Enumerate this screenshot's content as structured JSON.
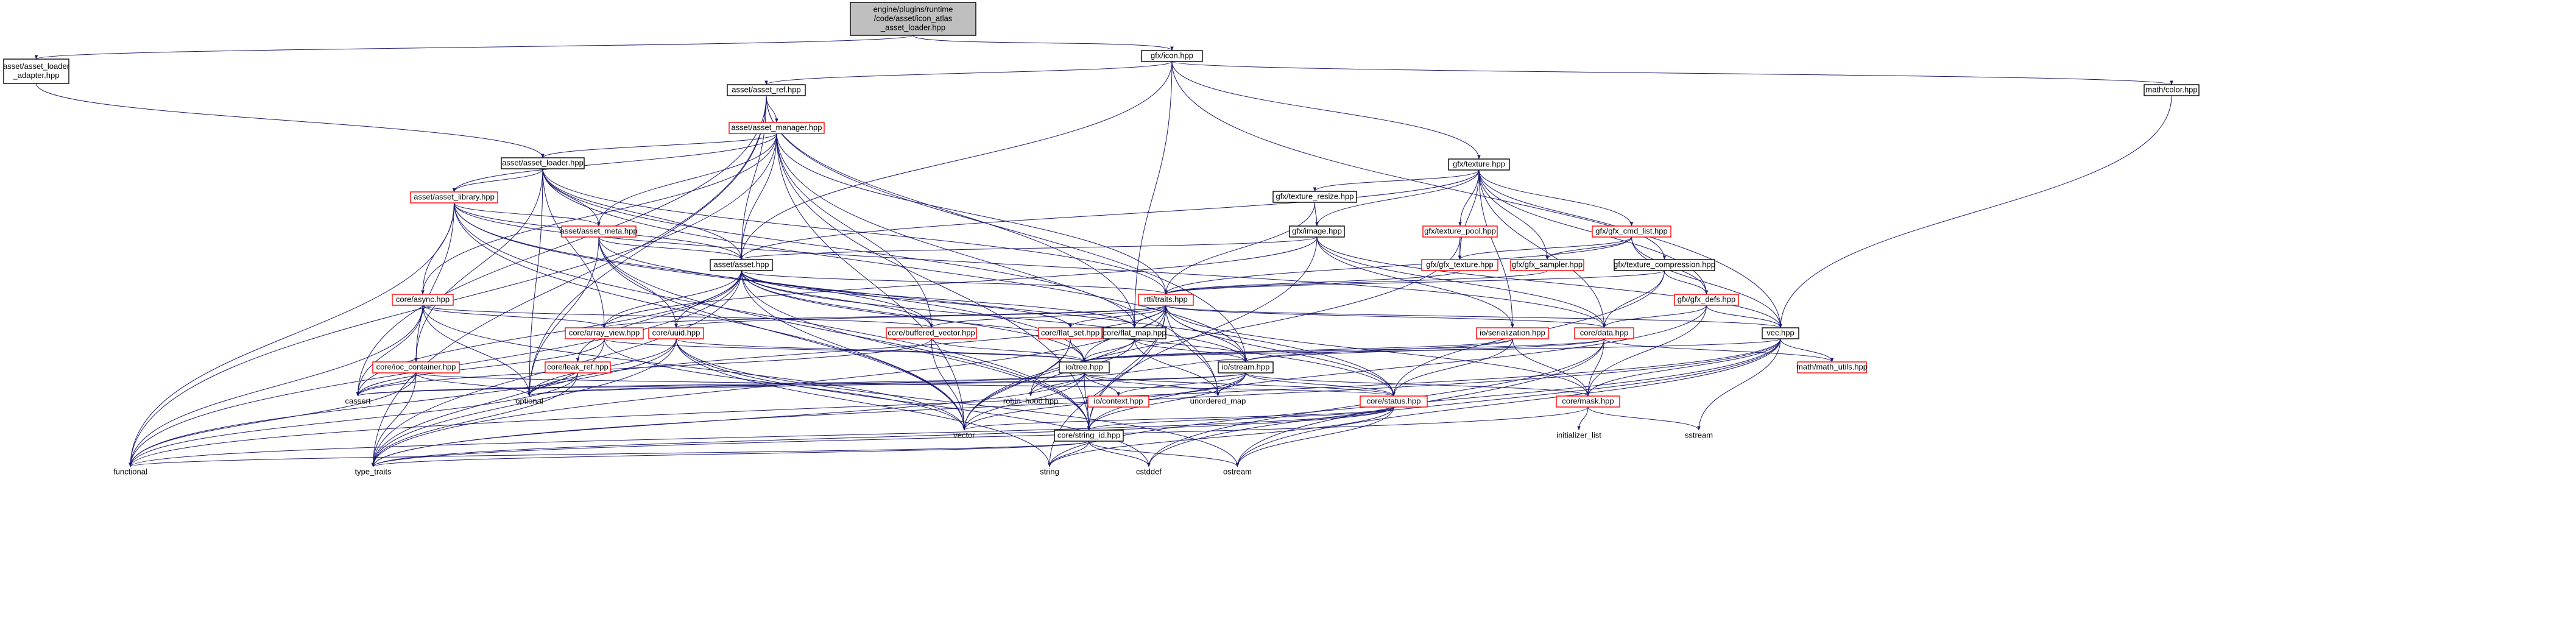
{
  "colors": {
    "edge": "#191970",
    "node_border_complete": "#000000",
    "node_border_incomplete": "#ff0000",
    "node_fill": "#ffffff",
    "root_fill": "#bfbfbf",
    "text": "#000000"
  },
  "nodes": [
    {
      "id": "root",
      "lines": [
        "engine/plugins/runtime",
        "/code/asset/icon_atlas",
        "_asset_loader.hpp"
      ],
      "style": "root"
    },
    {
      "id": "aal_adapter",
      "lines": [
        "asset/asset_loader",
        "_adapter.hpp"
      ],
      "style": "complete"
    },
    {
      "id": "gfx_icon",
      "lines": [
        "gfx/icon.hpp"
      ],
      "style": "complete"
    },
    {
      "id": "asset_ref",
      "lines": [
        "asset/asset_ref.hpp"
      ],
      "style": "complete"
    },
    {
      "id": "math_color",
      "lines": [
        "math/color.hpp"
      ],
      "style": "complete"
    },
    {
      "id": "asset_manager",
      "lines": [
        "asset/asset_manager.hpp"
      ],
      "style": "incomplete"
    },
    {
      "id": "asset_loader",
      "lines": [
        "asset/asset_loader.hpp"
      ],
      "style": "complete"
    },
    {
      "id": "gfx_texture",
      "lines": [
        "gfx/texture.hpp"
      ],
      "style": "complete"
    },
    {
      "id": "asset_library",
      "lines": [
        "asset/asset_library.hpp"
      ],
      "style": "incomplete"
    },
    {
      "id": "texture_resize",
      "lines": [
        "gfx/texture_resize.hpp"
      ],
      "style": "complete"
    },
    {
      "id": "asset_meta",
      "lines": [
        "asset/asset_meta.hpp"
      ],
      "style": "incomplete"
    },
    {
      "id": "gfx_image",
      "lines": [
        "gfx/image.hpp"
      ],
      "style": "complete"
    },
    {
      "id": "texture_pool",
      "lines": [
        "gfx/texture_pool.hpp"
      ],
      "style": "incomplete"
    },
    {
      "id": "gfx_cmd_list",
      "lines": [
        "gfx/gfx_cmd_list.hpp"
      ],
      "style": "incomplete"
    },
    {
      "id": "asset_asset",
      "lines": [
        "asset/asset.hpp"
      ],
      "style": "complete"
    },
    {
      "id": "gfx_gfx_texture",
      "lines": [
        "gfx/gfx_texture.hpp"
      ],
      "style": "incomplete"
    },
    {
      "id": "gfx_sampler",
      "lines": [
        "gfx/gfx_sampler.hpp"
      ],
      "style": "incomplete"
    },
    {
      "id": "texture_compression",
      "lines": [
        "gfx/texture_compression.hpp"
      ],
      "style": "complete"
    },
    {
      "id": "rtti_traits",
      "lines": [
        "rtti/traits.hpp"
      ],
      "style": "incomplete"
    },
    {
      "id": "core_async",
      "lines": [
        "core/async.hpp"
      ],
      "style": "incomplete"
    },
    {
      "id": "gfx_defs",
      "lines": [
        "gfx/gfx_defs.hpp"
      ],
      "style": "incomplete"
    },
    {
      "id": "array_view",
      "lines": [
        "core/array_view.hpp"
      ],
      "style": "incomplete"
    },
    {
      "id": "core_uuid",
      "lines": [
        "core/uuid.hpp"
      ],
      "style": "incomplete"
    },
    {
      "id": "buffered_vector",
      "lines": [
        "core/buffered_vector.hpp"
      ],
      "style": "incomplete"
    },
    {
      "id": "flat_set",
      "lines": [
        "core/flat_set.hpp"
      ],
      "style": "incomplete"
    },
    {
      "id": "flat_map",
      "lines": [
        "core/flat_map.hpp"
      ],
      "style": "complete"
    },
    {
      "id": "io_serialization",
      "lines": [
        "io/serialization.hpp"
      ],
      "style": "incomplete"
    },
    {
      "id": "core_data",
      "lines": [
        "core/data.hpp"
      ],
      "style": "incomplete"
    },
    {
      "id": "vec",
      "lines": [
        "vec.hpp"
      ],
      "style": "complete"
    },
    {
      "id": "leak_ref",
      "lines": [
        "core/leak_ref.hpp"
      ],
      "style": "incomplete"
    },
    {
      "id": "ioc_container",
      "lines": [
        "core/ioc_container.hpp"
      ],
      "style": "incomplete"
    },
    {
      "id": "io_tree",
      "lines": [
        "io/tree.hpp"
      ],
      "style": "complete"
    },
    {
      "id": "io_stream",
      "lines": [
        "io/stream.hpp"
      ],
      "style": "complete"
    },
    {
      "id": "math_utils",
      "lines": [
        "math/math_utils.hpp"
      ],
      "style": "incomplete"
    },
    {
      "id": "cassert",
      "lines": [
        "cassert"
      ],
      "style": "system"
    },
    {
      "id": "optional",
      "lines": [
        "optional"
      ],
      "style": "system"
    },
    {
      "id": "robin_hood",
      "lines": [
        "robin_hood.hpp"
      ],
      "style": "system"
    },
    {
      "id": "io_context",
      "lines": [
        "io/context.hpp"
      ],
      "style": "incomplete"
    },
    {
      "id": "unordered_map",
      "lines": [
        "unordered_map"
      ],
      "style": "system"
    },
    {
      "id": "core_status",
      "lines": [
        "core/status.hpp"
      ],
      "style": "incomplete"
    },
    {
      "id": "core_mask",
      "lines": [
        "core/mask.hpp"
      ],
      "style": "incomplete"
    },
    {
      "id": "vector",
      "lines": [
        "vector"
      ],
      "style": "system"
    },
    {
      "id": "string_id",
      "lines": [
        "core/string_id.hpp"
      ],
      "style": "complete"
    },
    {
      "id": "initializer_list",
      "lines": [
        "initializer_list"
      ],
      "style": "system"
    },
    {
      "id": "sstream",
      "lines": [
        "sstream"
      ],
      "style": "system"
    },
    {
      "id": "functional",
      "lines": [
        "functional"
      ],
      "style": "system"
    },
    {
      "id": "type_traits",
      "lines": [
        "type_traits"
      ],
      "style": "system"
    },
    {
      "id": "string",
      "lines": [
        "string"
      ],
      "style": "system"
    },
    {
      "id": "cstddef",
      "lines": [
        "cstddef"
      ],
      "style": "system"
    },
    {
      "id": "ostream",
      "lines": [
        "ostream"
      ],
      "style": "system"
    }
  ],
  "edges": [
    [
      "root",
      "aal_adapter"
    ],
    [
      "root",
      "gfx_icon"
    ],
    [
      "aal_adapter",
      "asset_loader"
    ],
    [
      "gfx_icon",
      "asset_ref"
    ],
    [
      "gfx_icon",
      "math_color"
    ],
    [
      "gfx_icon",
      "gfx_texture"
    ],
    [
      "gfx_icon",
      "asset_asset"
    ],
    [
      "gfx_icon",
      "vec"
    ],
    [
      "gfx_icon",
      "flat_map"
    ],
    [
      "asset_ref",
      "asset_manager"
    ],
    [
      "asset_ref",
      "asset_asset"
    ],
    [
      "asset_ref",
      "cassert"
    ],
    [
      "asset_ref",
      "optional"
    ],
    [
      "asset_ref",
      "type_traits"
    ],
    [
      "asset_ref",
      "io_stream"
    ],
    [
      "asset_ref",
      "flat_map"
    ],
    [
      "math_color",
      "vec"
    ],
    [
      "asset_manager",
      "asset_loader"
    ],
    [
      "asset_manager",
      "asset_library"
    ],
    [
      "asset_manager",
      "asset_meta"
    ],
    [
      "asset_manager",
      "asset_asset"
    ],
    [
      "asset_manager",
      "core_async"
    ],
    [
      "asset_manager",
      "buffered_vector"
    ],
    [
      "asset_manager",
      "rtti_traits"
    ],
    [
      "asset_manager",
      "functional"
    ],
    [
      "asset_manager",
      "vector"
    ],
    [
      "asset_manager",
      "unordered_map"
    ],
    [
      "asset_manager",
      "string_id"
    ],
    [
      "asset_loader",
      "asset_library"
    ],
    [
      "asset_loader",
      "asset_meta"
    ],
    [
      "asset_loader",
      "asset_asset"
    ],
    [
      "asset_loader",
      "array_view"
    ],
    [
      "asset_loader",
      "ioc_container"
    ],
    [
      "asset_loader",
      "rtti_traits"
    ],
    [
      "asset_loader",
      "io_stream"
    ],
    [
      "asset_loader",
      "optional"
    ],
    [
      "asset_loader",
      "flat_map"
    ],
    [
      "asset_library",
      "asset_meta"
    ],
    [
      "asset_library",
      "asset_asset"
    ],
    [
      "asset_library",
      "core_async"
    ],
    [
      "asset_library",
      "ioc_container"
    ],
    [
      "asset_library",
      "core_data"
    ],
    [
      "asset_library",
      "string_id"
    ],
    [
      "asset_library",
      "vector"
    ],
    [
      "asset_library",
      "io_tree"
    ],
    [
      "asset_library",
      "functional"
    ],
    [
      "asset_library",
      "core_status"
    ],
    [
      "gfx_texture",
      "texture_resize"
    ],
    [
      "gfx_texture",
      "gfx_image"
    ],
    [
      "gfx_texture",
      "texture_pool"
    ],
    [
      "gfx_texture",
      "gfx_cmd_list"
    ],
    [
      "gfx_texture",
      "gfx_gfx_texture"
    ],
    [
      "gfx_texture",
      "gfx_sampler"
    ],
    [
      "gfx_texture",
      "texture_compression"
    ],
    [
      "gfx_texture",
      "asset_asset"
    ],
    [
      "gfx_texture",
      "gfx_defs"
    ],
    [
      "gfx_texture",
      "io_serialization"
    ],
    [
      "gfx_texture",
      "core_data"
    ],
    [
      "texture_resize",
      "gfx_image"
    ],
    [
      "texture_resize",
      "rtti_traits"
    ],
    [
      "asset_meta",
      "asset_asset"
    ],
    [
      "asset_meta",
      "core_uuid"
    ],
    [
      "asset_meta",
      "buffered_vector"
    ],
    [
      "asset_meta",
      "optional"
    ],
    [
      "asset_meta",
      "vector"
    ],
    [
      "asset_meta",
      "string_id"
    ],
    [
      "gfx_image",
      "asset_asset"
    ],
    [
      "gfx_image",
      "array_view"
    ],
    [
      "gfx_image",
      "core_data"
    ],
    [
      "gfx_image",
      "vec"
    ],
    [
      "gfx_image",
      "io_serialization"
    ],
    [
      "gfx_image",
      "string_id"
    ],
    [
      "texture_pool",
      "gfx_gfx_texture"
    ],
    [
      "texture_pool",
      "vector"
    ],
    [
      "gfx_cmd_list",
      "gfx_gfx_texture"
    ],
    [
      "gfx_cmd_list",
      "gfx_sampler"
    ],
    [
      "gfx_cmd_list",
      "gfx_defs"
    ],
    [
      "gfx_cmd_list",
      "vec"
    ],
    [
      "gfx_cmd_list",
      "rtti_traits"
    ],
    [
      "gfx_gfx_texture",
      "rtti_traits"
    ],
    [
      "gfx_sampler",
      "rtti_traits"
    ],
    [
      "texture_compression",
      "gfx_defs"
    ],
    [
      "texture_compression",
      "rtti_traits"
    ],
    [
      "texture_compression",
      "core_data"
    ],
    [
      "texture_compression",
      "core_status"
    ],
    [
      "asset_asset",
      "rtti_traits"
    ],
    [
      "asset_asset",
      "array_view"
    ],
    [
      "asset_asset",
      "core_uuid"
    ],
    [
      "asset_asset",
      "buffered_vector"
    ],
    [
      "asset_asset",
      "flat_set"
    ],
    [
      "asset_asset",
      "flat_map"
    ],
    [
      "asset_asset",
      "leak_ref"
    ],
    [
      "asset_asset",
      "io_tree"
    ],
    [
      "asset_asset",
      "io_stream"
    ],
    [
      "asset_asset",
      "cassert"
    ],
    [
      "asset_asset",
      "vector"
    ],
    [
      "asset_asset",
      "string_id"
    ],
    [
      "asset_asset",
      "core_status"
    ],
    [
      "asset_asset",
      "type_traits"
    ],
    [
      "asset_asset",
      "functional"
    ],
    [
      "rtti_traits",
      "array_view"
    ],
    [
      "rtti_traits",
      "core_uuid"
    ],
    [
      "rtti_traits",
      "buffered_vector"
    ],
    [
      "rtti_traits",
      "flat_set"
    ],
    [
      "rtti_traits",
      "flat_map"
    ],
    [
      "rtti_traits",
      "core_data"
    ],
    [
      "rtti_traits",
      "vec"
    ],
    [
      "rtti_traits",
      "io_tree"
    ],
    [
      "rtti_traits",
      "io_stream"
    ],
    [
      "rtti_traits",
      "core_status"
    ],
    [
      "rtti_traits",
      "core_mask"
    ],
    [
      "rtti_traits",
      "string_id"
    ],
    [
      "rtti_traits",
      "type_traits"
    ],
    [
      "rtti_traits",
      "unordered_map"
    ],
    [
      "rtti_traits",
      "vector"
    ],
    [
      "rtti_traits",
      "optional"
    ],
    [
      "rtti_traits",
      "string"
    ],
    [
      "core_async",
      "array_view"
    ],
    [
      "core_async",
      "optional"
    ],
    [
      "core_async",
      "cassert"
    ],
    [
      "core_async",
      "functional"
    ],
    [
      "core_async",
      "vector"
    ],
    [
      "core_async",
      "buffered_vector"
    ],
    [
      "gfx_defs",
      "core_data"
    ],
    [
      "gfx_defs",
      "vec"
    ],
    [
      "gfx_defs",
      "core_mask"
    ],
    [
      "gfx_defs",
      "string_id"
    ],
    [
      "array_view",
      "io_tree"
    ],
    [
      "array_view",
      "cassert"
    ],
    [
      "array_view",
      "type_traits"
    ],
    [
      "array_view",
      "vector"
    ],
    [
      "core_uuid",
      "io_tree"
    ],
    [
      "core_uuid",
      "functional"
    ],
    [
      "core_uuid",
      "type_traits"
    ],
    [
      "core_uuid",
      "string"
    ],
    [
      "core_uuid",
      "cstddef"
    ],
    [
      "core_uuid",
      "ostream"
    ],
    [
      "core_uuid",
      "optional"
    ],
    [
      "buffered_vector",
      "io_tree"
    ],
    [
      "buffered_vector",
      "vector"
    ],
    [
      "buffered_vector",
      "cassert"
    ],
    [
      "flat_set",
      "io_tree"
    ],
    [
      "flat_set",
      "robin_hood"
    ],
    [
      "flat_set",
      "vector"
    ],
    [
      "flat_map",
      "io_tree"
    ],
    [
      "flat_map",
      "io_stream"
    ],
    [
      "flat_map",
      "robin_hood"
    ],
    [
      "flat_map",
      "unordered_map"
    ],
    [
      "io_serialization",
      "io_tree"
    ],
    [
      "io_serialization",
      "io_stream"
    ],
    [
      "io_serialization",
      "core_status"
    ],
    [
      "io_serialization",
      "core_mask"
    ],
    [
      "core_data",
      "io_tree"
    ],
    [
      "core_data",
      "io_stream"
    ],
    [
      "core_data",
      "math_utils"
    ],
    [
      "core_data",
      "core_mask"
    ],
    [
      "core_data",
      "cstddef"
    ],
    [
      "core_data",
      "ostream"
    ],
    [
      "vec",
      "math_utils"
    ],
    [
      "vec",
      "io_tree"
    ],
    [
      "vec",
      "core_mask"
    ],
    [
      "vec",
      "sstream"
    ],
    [
      "vec",
      "cstddef"
    ],
    [
      "vec",
      "ostream"
    ],
    [
      "vec",
      "string"
    ],
    [
      "vec",
      "type_traits"
    ],
    [
      "vec",
      "functional"
    ],
    [
      "leak_ref",
      "optional"
    ],
    [
      "leak_ref",
      "functional"
    ],
    [
      "leak_ref",
      "type_traits"
    ],
    [
      "ioc_container",
      "cassert"
    ],
    [
      "ioc_container",
      "optional"
    ],
    [
      "ioc_container",
      "functional"
    ],
    [
      "ioc_container",
      "type_traits"
    ],
    [
      "ioc_container",
      "core_status"
    ],
    [
      "io_tree",
      "io_stream"
    ],
    [
      "io_tree",
      "io_context"
    ],
    [
      "io_tree",
      "unordered_map"
    ],
    [
      "io_tree",
      "robin_hood"
    ],
    [
      "io_tree",
      "vector"
    ],
    [
      "io_tree",
      "optional"
    ],
    [
      "io_tree",
      "string_id"
    ],
    [
      "io_tree",
      "core_status"
    ],
    [
      "io_tree",
      "type_traits"
    ],
    [
      "io_tree",
      "cassert"
    ],
    [
      "io_stream",
      "io_context"
    ],
    [
      "io_stream",
      "core_status"
    ],
    [
      "io_stream",
      "core_mask"
    ],
    [
      "io_stream",
      "vector"
    ],
    [
      "io_stream",
      "string_id"
    ],
    [
      "io_stream",
      "optional"
    ],
    [
      "io_stream",
      "unordered_map"
    ],
    [
      "io_stream",
      "cassert"
    ],
    [
      "core_status",
      "string_id"
    ],
    [
      "core_status",
      "vector"
    ],
    [
      "core_status",
      "functional"
    ],
    [
      "core_status",
      "type_traits"
    ],
    [
      "core_status",
      "string"
    ],
    [
      "core_status",
      "ostream"
    ],
    [
      "core_mask",
      "initializer_list"
    ],
    [
      "core_mask",
      "sstream"
    ],
    [
      "core_mask",
      "type_traits"
    ],
    [
      "string_id",
      "string"
    ],
    [
      "string_id",
      "cstddef"
    ],
    [
      "string_id",
      "functional"
    ],
    [
      "string_id",
      "ostream"
    ],
    [
      "string_id",
      "type_traits"
    ]
  ]
}
